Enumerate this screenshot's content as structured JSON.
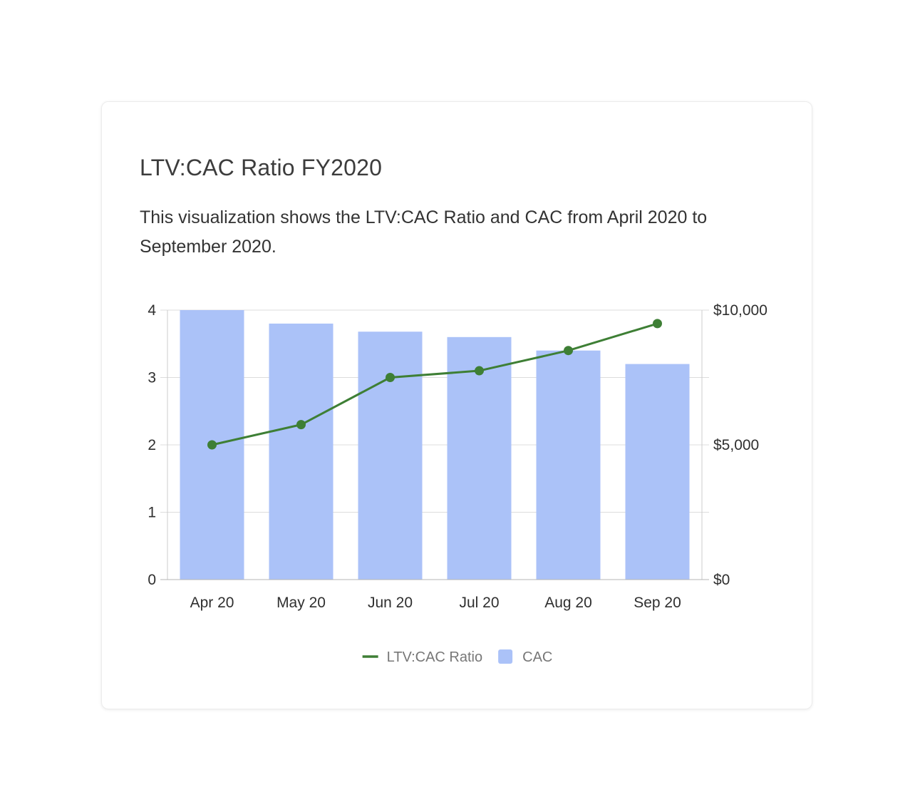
{
  "card": {
    "title": "LTV:CAC Ratio FY2020",
    "subtitle": "This visualization shows the LTV:CAC Ratio and CAC from April 2020 to September 2020."
  },
  "colors": {
    "bar": "#abc2f8",
    "line": "#3e7f35",
    "grid": "#dcdcdc",
    "axis": "#cccccc"
  },
  "chart_data": {
    "type": "bar",
    "categories": [
      "Apr 20",
      "May 20",
      "Jun 20",
      "Jul 20",
      "Aug 20",
      "Sep 20"
    ],
    "series": [
      {
        "name": "LTV:CAC Ratio",
        "type": "line",
        "axis": "left",
        "values": [
          2.0,
          2.3,
          3.0,
          3.1,
          3.4,
          3.8
        ]
      },
      {
        "name": "CAC",
        "type": "bar",
        "axis": "right",
        "values": [
          10000,
          9500,
          9200,
          9000,
          8500,
          8000
        ]
      }
    ],
    "left_axis": {
      "ylim": [
        0,
        4
      ],
      "ticks": [
        0,
        1,
        2,
        3,
        4
      ],
      "tick_labels": [
        "0",
        "1",
        "2",
        "3",
        "4"
      ]
    },
    "right_axis": {
      "ylim": [
        0,
        10000
      ],
      "ticks": [
        0,
        5000,
        10000
      ],
      "tick_labels": [
        "$0",
        "$5,000",
        "$10,000"
      ]
    },
    "grid": true,
    "legend_position": "bottom"
  }
}
